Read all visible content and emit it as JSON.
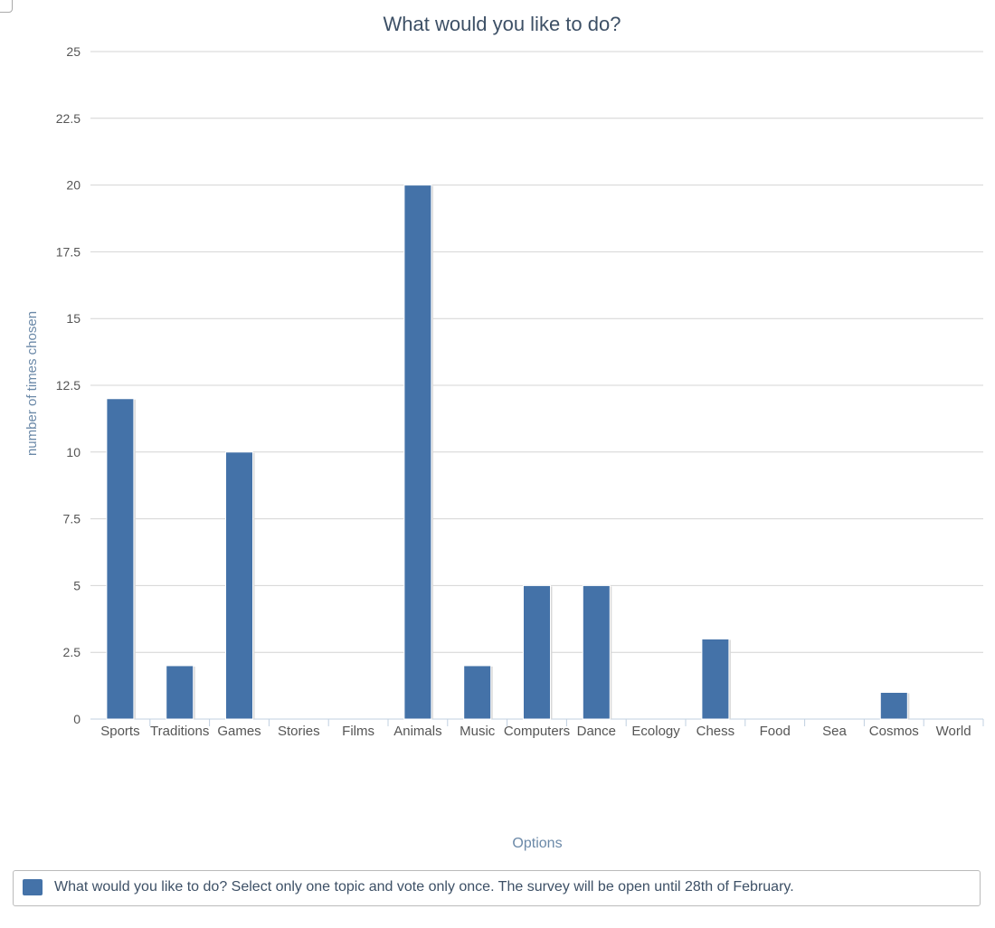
{
  "chart_data": {
    "type": "bar",
    "title": "What would you like to do?",
    "xlabel": "Options",
    "ylabel": "number of times chosen",
    "categories": [
      "Sports",
      "Traditions",
      "Games",
      "Stories",
      "Films",
      "Animals",
      "Music",
      "Computers",
      "Dance",
      "Ecology",
      "Chess",
      "Food",
      "Sea",
      "Cosmos",
      "World"
    ],
    "series": [
      {
        "name": "What would you like to do? Select only one topic and vote only once. The survey will be open until 28th of February.",
        "values": [
          12,
          2,
          10,
          0,
          0,
          20,
          2,
          5,
          5,
          0,
          3,
          0,
          0,
          1,
          0
        ]
      }
    ],
    "ylim": [
      0,
      25
    ],
    "yticks": [
      "0",
      "2.5",
      "5",
      "7.5",
      "10",
      "12.5",
      "15",
      "17.5",
      "20",
      "22.5",
      "25"
    ],
    "grid": true,
    "legend_position": "bottom",
    "bar_color": "#4472a8"
  }
}
